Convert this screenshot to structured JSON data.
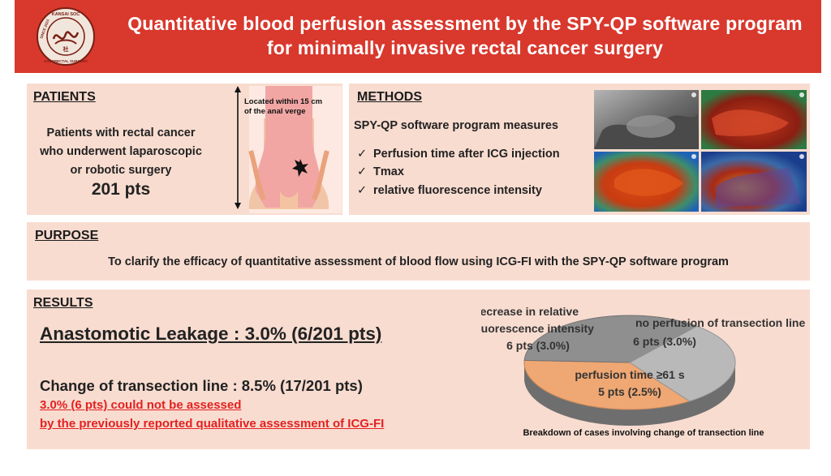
{
  "header": {
    "title_line1": "Quantitative blood perfusion assessment by the SPY-QP software program",
    "title_line2": "for minimally invasive rectal cancer surgery",
    "logo_icon": "society-seal-icon",
    "logo_text_top": "KANSAI SOC",
    "logo_text_bottom": "COLORECTAL SURGERY",
    "logo_since": "SINCE 2024"
  },
  "patients": {
    "heading": "PATIENTS",
    "line1": "Patients with rectal cancer",
    "line2": "who underwent laparoscopic",
    "line3": "or robotic surgery",
    "count": "201 pts",
    "illustration_label_line1": "Located within 15 cm",
    "illustration_label_line2": "of the anal verge",
    "illustration_icon": "rectum-illustration-icon"
  },
  "methods": {
    "heading": "METHODS",
    "intro": "SPY-QP software program measures",
    "items": [
      "Perfusion time after ICG injection",
      "Tmax",
      "relative fluorescence intensity"
    ],
    "check_glyph": "✓",
    "image_icon": "fluorescence-image-grid-icon"
  },
  "purpose": {
    "heading": "PURPOSE",
    "text": "To clarify the efficacy of quantitative assessment of blood flow using ICG-FI with the SPY-QP software program"
  },
  "results": {
    "heading": "RESULTS",
    "leakage": "Anastomotic Leakage : 3.0% (6/201 pts)",
    "change": "Change of transection line : 8.5% (17/201 pts)",
    "note_line1": "3.0% (6 pts) could not be assessed",
    "note_line2": "by the previously reported qualitative assessment of ICG-FI"
  },
  "chart_data": {
    "type": "pie",
    "title": "Breakdown of cases involving change of transection line",
    "slices": [
      {
        "label_line1": "decrease in relative",
        "label_line2": "fluorescence intensity",
        "value_label": "6 pts (3.0%)",
        "value": 6,
        "color": "#efa773"
      },
      {
        "label_line1": "no perfusion of transection line",
        "label_line2": "",
        "value_label": "6 pts (3.0%)",
        "value": 6,
        "color": "#8f8f8f"
      },
      {
        "label_line1": "perfusion time ≥61 s",
        "label_line2": "",
        "value_label": "5 pts (2.5%)",
        "value": 5,
        "color": "#b9b9b9"
      }
    ]
  }
}
